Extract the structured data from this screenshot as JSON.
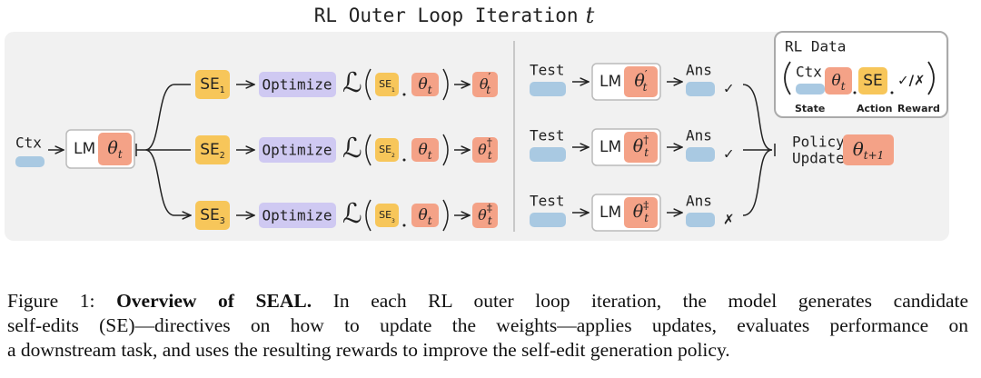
{
  "title": {
    "text": "RL Outer Loop Iteration",
    "var": "t"
  },
  "context_label": "Ctx",
  "model": {
    "label": "LM",
    "param": {
      "symbol": "θ",
      "sub": "t"
    }
  },
  "branches": [
    {
      "self_edit": {
        "label": "SE",
        "sub": "1"
      },
      "optimize": "Optimize",
      "loss": "ℒ",
      "updated": {
        "symbol": "θ",
        "sub": "t",
        "sup": "′"
      },
      "test": "Test",
      "answer": "Ans",
      "reward": "✓"
    },
    {
      "self_edit": {
        "label": "SE",
        "sub": "2"
      },
      "optimize": "Optimize",
      "loss": "ℒ",
      "updated": {
        "symbol": "θ",
        "sub": "t",
        "sup": "†"
      },
      "test": "Test",
      "answer": "Ans",
      "reward": "✓"
    },
    {
      "self_edit": {
        "label": "SE",
        "sub": "3"
      },
      "optimize": "Optimize",
      "loss": "ℒ",
      "updated": {
        "symbol": "θ",
        "sub": "t",
        "sup": "‡"
      },
      "test": "Test",
      "answer": "Ans",
      "reward": "✗"
    }
  ],
  "policy_update": {
    "lines": [
      "Policy",
      "Update"
    ],
    "param": {
      "symbol": "θ",
      "sub": "t+1"
    }
  },
  "rl_data": {
    "title": "RL Data",
    "state": "Ctx",
    "action": "SE",
    "reward": "✓/✗",
    "labels": [
      "State",
      "Action",
      "Reward"
    ]
  },
  "caption": {
    "label": "Figure 1:",
    "bold": "Overview of SEAL.",
    "lines": [
      " In each RL outer loop iteration, the model generates candidate",
      "self-edits (SE)—directives on how to update the weights—applies updates, evaluates performance on",
      "a downstream task, and uses the resulting rewards to improve the self-edit generation policy."
    ]
  }
}
